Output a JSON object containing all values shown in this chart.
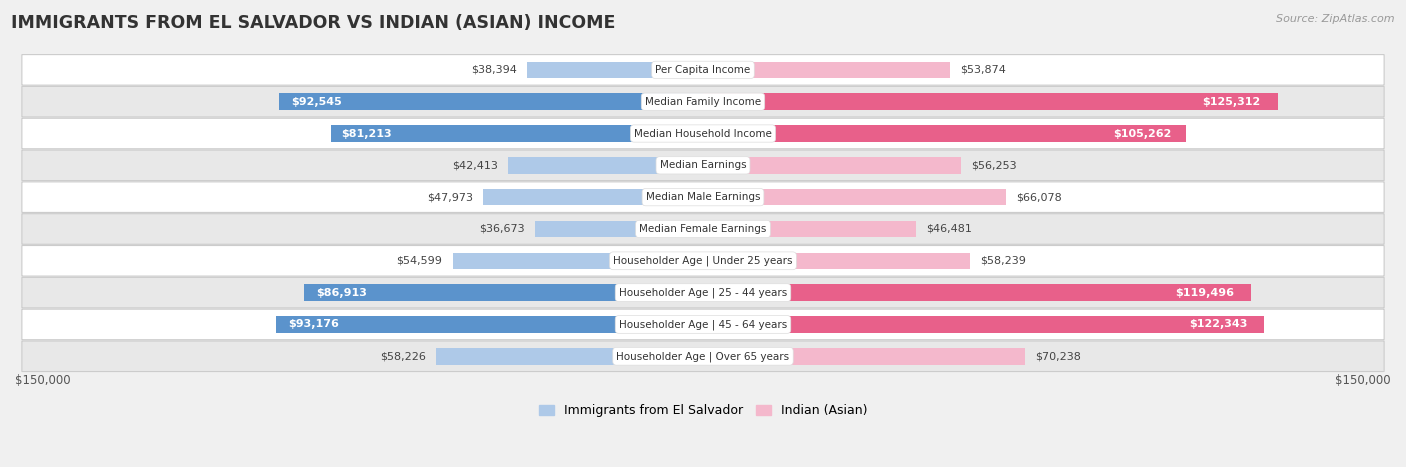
{
  "title": "IMMIGRANTS FROM EL SALVADOR VS INDIAN (ASIAN) INCOME",
  "source": "Source: ZipAtlas.com",
  "categories": [
    "Per Capita Income",
    "Median Family Income",
    "Median Household Income",
    "Median Earnings",
    "Median Male Earnings",
    "Median Female Earnings",
    "Householder Age | Under 25 years",
    "Householder Age | 25 - 44 years",
    "Householder Age | 45 - 64 years",
    "Householder Age | Over 65 years"
  ],
  "el_salvador_values": [
    38394,
    92545,
    81213,
    42413,
    47973,
    36673,
    54599,
    86913,
    93176,
    58226
  ],
  "indian_values": [
    53874,
    125312,
    105262,
    56253,
    66078,
    46481,
    58239,
    119496,
    122343,
    70238
  ],
  "el_salvador_labels": [
    "$38,394",
    "$92,545",
    "$81,213",
    "$42,413",
    "$47,973",
    "$36,673",
    "$54,599",
    "$86,913",
    "$93,176",
    "$58,226"
  ],
  "indian_labels": [
    "$53,874",
    "$125,312",
    "$105,262",
    "$56,253",
    "$66,078",
    "$46,481",
    "$58,239",
    "$119,496",
    "$122,343",
    "$70,238"
  ],
  "el_salvador_color_light": "#aec9e8",
  "el_salvador_color_dark": "#5b93cc",
  "indian_color_light": "#f4b8cc",
  "indian_color_dark": "#e8608a",
  "max_value": 150000,
  "legend_el_salvador": "Immigrants from El Salvador",
  "legend_indian": "Indian (Asian)",
  "background_color": "#f0f0f0",
  "row_bg_even": "#ffffff",
  "row_bg_odd": "#e8e8e8",
  "axis_label_left": "$150,000",
  "axis_label_right": "$150,000",
  "el_inside_threshold": 65000,
  "in_inside_threshold": 95000
}
